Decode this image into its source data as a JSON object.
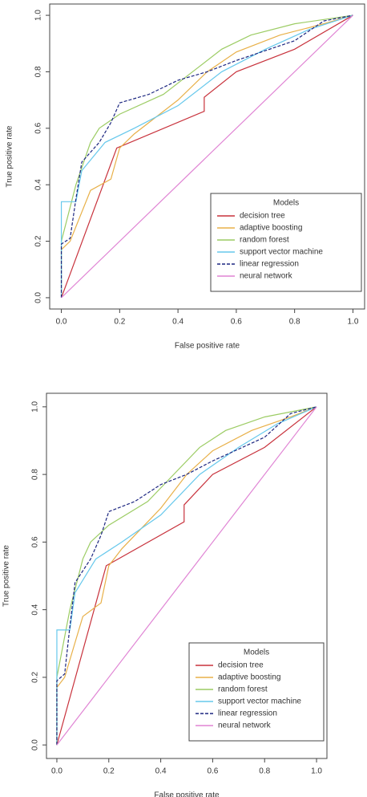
{
  "chart_data": [
    {
      "type": "line",
      "xlabel": "False positive rate",
      "ylabel": "True positive rate",
      "legend_title": "Models",
      "legend": "bottomright",
      "xlim": [
        -0.04,
        1.04
      ],
      "ylim": [
        -0.04,
        1.04
      ],
      "xticks": [
        {
          "value": 0,
          "label": "0.0"
        },
        0.2,
        0.4,
        0.6,
        0.8,
        {
          "value": 1,
          "label": "1.0"
        }
      ],
      "yticks": [
        {
          "value": 0,
          "label": "0.0"
        },
        0.2,
        0.4,
        0.6,
        0.8,
        {
          "value": 1,
          "label": "1.0"
        }
      ],
      "series": [
        {
          "name": "decision tree",
          "color": "#c8323c",
          "x": [
            0,
            0.19,
            0.49,
            0.49,
            0.6,
            0.8,
            1
          ],
          "values": [
            0,
            0.53,
            0.66,
            0.71,
            0.8,
            0.88,
            1
          ]
        },
        {
          "name": "adaptive boosting",
          "color": "#e8b048",
          "x": [
            0,
            0,
            0.03,
            0.1,
            0.17,
            0.2,
            0.25,
            0.4,
            0.5,
            0.6,
            0.75,
            0.9,
            1
          ],
          "values": [
            0,
            0.17,
            0.2,
            0.38,
            0.42,
            0.53,
            0.58,
            0.7,
            0.8,
            0.87,
            0.93,
            0.97,
            1
          ]
        },
        {
          "name": "random forest",
          "color": "#9ccc64",
          "x": [
            0,
            0,
            0.05,
            0.1,
            0.13,
            0.2,
            0.35,
            0.45,
            0.55,
            0.65,
            0.8,
            1
          ],
          "values": [
            0,
            0.2,
            0.4,
            0.55,
            0.6,
            0.65,
            0.72,
            0.8,
            0.88,
            0.93,
            0.97,
            1
          ]
        },
        {
          "name": "support vector machine",
          "color": "#66c8ec",
          "x": [
            0,
            0,
            0.05,
            0.07,
            0.15,
            0.25,
            0.4,
            0.55,
            0.7,
            0.85,
            1
          ],
          "values": [
            0,
            0.34,
            0.34,
            0.45,
            0.55,
            0.6,
            0.68,
            0.8,
            0.88,
            0.95,
            1
          ]
        },
        {
          "name": "linear regression",
          "color": "#1c2680",
          "dashed": true,
          "x": [
            0,
            0,
            0.03,
            0.05,
            0.07,
            0.13,
            0.17,
            0.2,
            0.3,
            0.4,
            0.5,
            0.6,
            0.8,
            0.9,
            1
          ],
          "values": [
            0,
            0.19,
            0.21,
            0.35,
            0.48,
            0.55,
            0.62,
            0.69,
            0.72,
            0.77,
            0.8,
            0.84,
            0.91,
            0.98,
            1
          ]
        },
        {
          "name": "neural network",
          "color": "#e084d4",
          "x": [
            0,
            1
          ],
          "values": [
            0,
            1
          ]
        }
      ]
    },
    {
      "type": "line",
      "xlabel": "False positive rate",
      "ylabel": "True positive rate",
      "legend_title": "Models",
      "legend": "bottomright",
      "xlim": [
        -0.04,
        1.04
      ],
      "ylim": [
        -0.04,
        1.04
      ],
      "xticks": [
        {
          "value": 0,
          "label": "0.0"
        },
        0.2,
        0.4,
        0.6,
        0.8,
        {
          "value": 1,
          "label": "1.0"
        }
      ],
      "yticks": [
        {
          "value": 0,
          "label": "0.0"
        },
        0.2,
        0.4,
        0.6,
        0.8,
        {
          "value": 1,
          "label": "1.0"
        }
      ],
      "series": [
        {
          "name": "decision tree",
          "color": "#c8323c",
          "x": [
            0,
            0.19,
            0.49,
            0.49,
            0.6,
            0.8,
            1
          ],
          "values": [
            0,
            0.53,
            0.66,
            0.71,
            0.8,
            0.88,
            1
          ]
        },
        {
          "name": "adaptive boosting",
          "color": "#e8b048",
          "x": [
            0,
            0,
            0.03,
            0.1,
            0.17,
            0.2,
            0.25,
            0.4,
            0.5,
            0.6,
            0.75,
            0.9,
            1
          ],
          "values": [
            0,
            0.17,
            0.2,
            0.38,
            0.42,
            0.53,
            0.58,
            0.7,
            0.8,
            0.87,
            0.93,
            0.97,
            1
          ]
        },
        {
          "name": "random forest",
          "color": "#9ccc64",
          "x": [
            0,
            0,
            0.05,
            0.1,
            0.13,
            0.2,
            0.35,
            0.45,
            0.55,
            0.65,
            0.8,
            1
          ],
          "values": [
            0,
            0.2,
            0.4,
            0.55,
            0.6,
            0.65,
            0.72,
            0.8,
            0.88,
            0.93,
            0.97,
            1
          ]
        },
        {
          "name": "support vector machine",
          "color": "#66c8ec",
          "x": [
            0,
            0,
            0.05,
            0.07,
            0.15,
            0.25,
            0.4,
            0.55,
            0.7,
            0.85,
            1
          ],
          "values": [
            0,
            0.34,
            0.34,
            0.45,
            0.55,
            0.6,
            0.68,
            0.8,
            0.88,
            0.95,
            1
          ]
        },
        {
          "name": "linear regression",
          "color": "#1c2680",
          "dashed": true,
          "x": [
            0,
            0,
            0.03,
            0.05,
            0.07,
            0.13,
            0.17,
            0.2,
            0.3,
            0.4,
            0.5,
            0.6,
            0.8,
            0.9,
            1
          ],
          "values": [
            0,
            0.19,
            0.21,
            0.35,
            0.48,
            0.55,
            0.62,
            0.69,
            0.72,
            0.77,
            0.8,
            0.84,
            0.91,
            0.98,
            1
          ]
        },
        {
          "name": "neural network",
          "color": "#e084d4",
          "x": [
            0,
            1
          ],
          "values": [
            0,
            1
          ]
        }
      ]
    }
  ]
}
